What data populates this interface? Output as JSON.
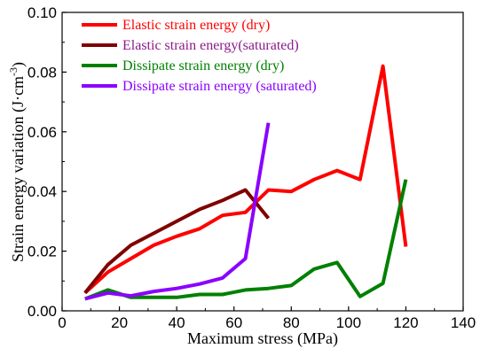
{
  "chart_data": {
    "type": "line",
    "xlabel": "Maximum stress (MPa)",
    "ylabel": "Strain energy variation (J·cm",
    "ylabel_sup": "-3",
    "ylabel_close": ")",
    "xlim": [
      0,
      140
    ],
    "ylim": [
      0,
      0.1
    ],
    "x_ticks": [
      "0",
      "20",
      "40",
      "60",
      "80",
      "100",
      "120",
      "140"
    ],
    "y_ticks": [
      "0.00",
      "0.02",
      "0.04",
      "0.06",
      "0.08",
      "0.10"
    ],
    "grid": false,
    "legend_position": "top-left",
    "series": [
      {
        "name": "Elastic strain energy (dry)",
        "color": "#ff0000",
        "text_color": "#ff0000",
        "x": [
          8,
          16,
          24,
          32,
          40,
          48,
          56,
          64,
          72,
          80,
          88,
          96,
          104,
          112,
          120
        ],
        "y": [
          0.006,
          0.013,
          0.0175,
          0.022,
          0.025,
          0.0275,
          0.032,
          0.033,
          0.0405,
          0.04,
          0.044,
          0.047,
          0.044,
          0.082,
          0.0215
        ]
      },
      {
        "name": "Elastic strain energy(saturated)",
        "color": "#800000",
        "text_color": "#8b1a8b",
        "x": [
          8,
          16,
          24,
          32,
          40,
          48,
          56,
          64,
          72
        ],
        "y": [
          0.006,
          0.0155,
          0.022,
          0.026,
          0.03,
          0.034,
          0.037,
          0.0405,
          0.031
        ]
      },
      {
        "name": "Dissipate strain energy (dry)",
        "color": "#008000",
        "text_color": "#008000",
        "x": [
          8,
          16,
          24,
          32,
          40,
          48,
          56,
          64,
          72,
          80,
          88,
          96,
          104,
          112,
          120
        ],
        "y": [
          0.004,
          0.007,
          0.0045,
          0.0045,
          0.0045,
          0.0055,
          0.0055,
          0.007,
          0.0075,
          0.0085,
          0.014,
          0.0162,
          0.0048,
          0.0092,
          0.044
        ]
      },
      {
        "name": "Dissipate strain energy (saturated)",
        "color": "#8b00ff",
        "text_color": "#8b00ff",
        "x": [
          8,
          16,
          24,
          32,
          40,
          48,
          56,
          64,
          72
        ],
        "y": [
          0.004,
          0.006,
          0.005,
          0.0065,
          0.0075,
          0.009,
          0.011,
          0.0175,
          0.063
        ]
      }
    ]
  }
}
